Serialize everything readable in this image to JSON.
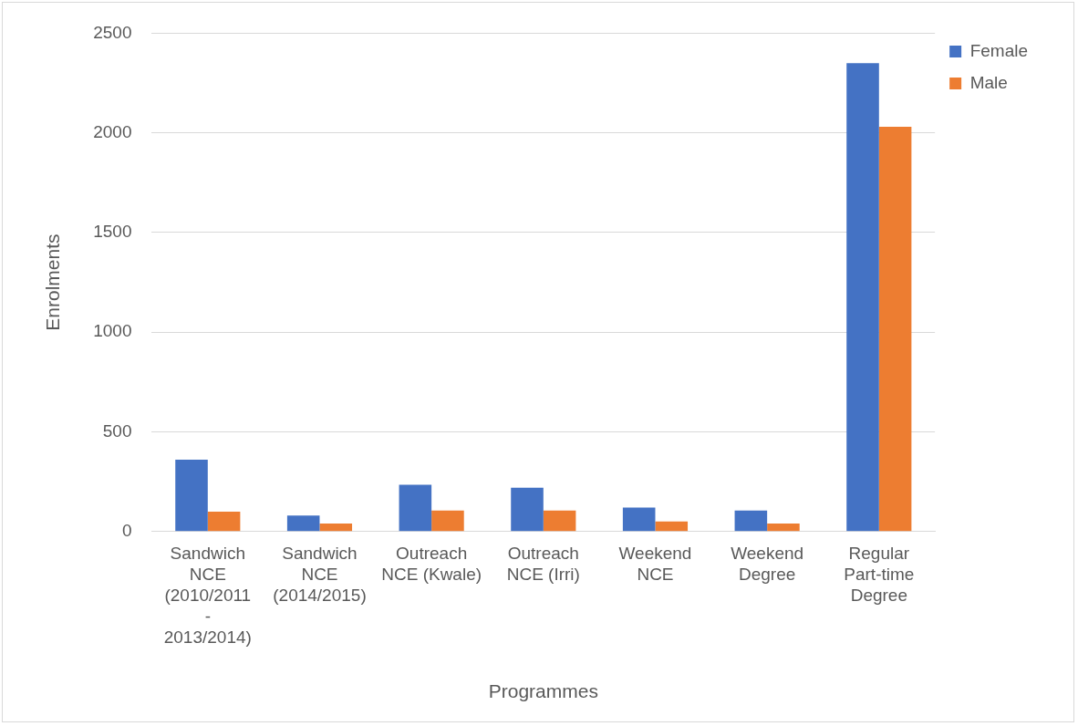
{
  "chart_data": {
    "type": "bar",
    "xlabel": "Programmes",
    "ylabel": "Enrolments",
    "categories": [
      "Sandwich NCE (2010/2011 - 2013/2014)",
      "Sandwich NCE (2014/2015)",
      "Outreach NCE (Kwale)",
      "Outreach NCE (Irri)",
      "Weekend NCE",
      "Weekend Degree",
      "Regular Part-time Degree"
    ],
    "series": [
      {
        "name": "Female",
        "color": "#4472c4",
        "values": [
          360,
          80,
          235,
          220,
          120,
          105,
          2350
        ]
      },
      {
        "name": "Male",
        "color": "#ed7d31",
        "values": [
          100,
          40,
          105,
          105,
          50,
          40,
          2030
        ]
      }
    ],
    "ylim": [
      0,
      2500
    ],
    "yticks": [
      0,
      500,
      1000,
      1500,
      2000,
      2500
    ],
    "grid": "y",
    "legend": "top right"
  }
}
